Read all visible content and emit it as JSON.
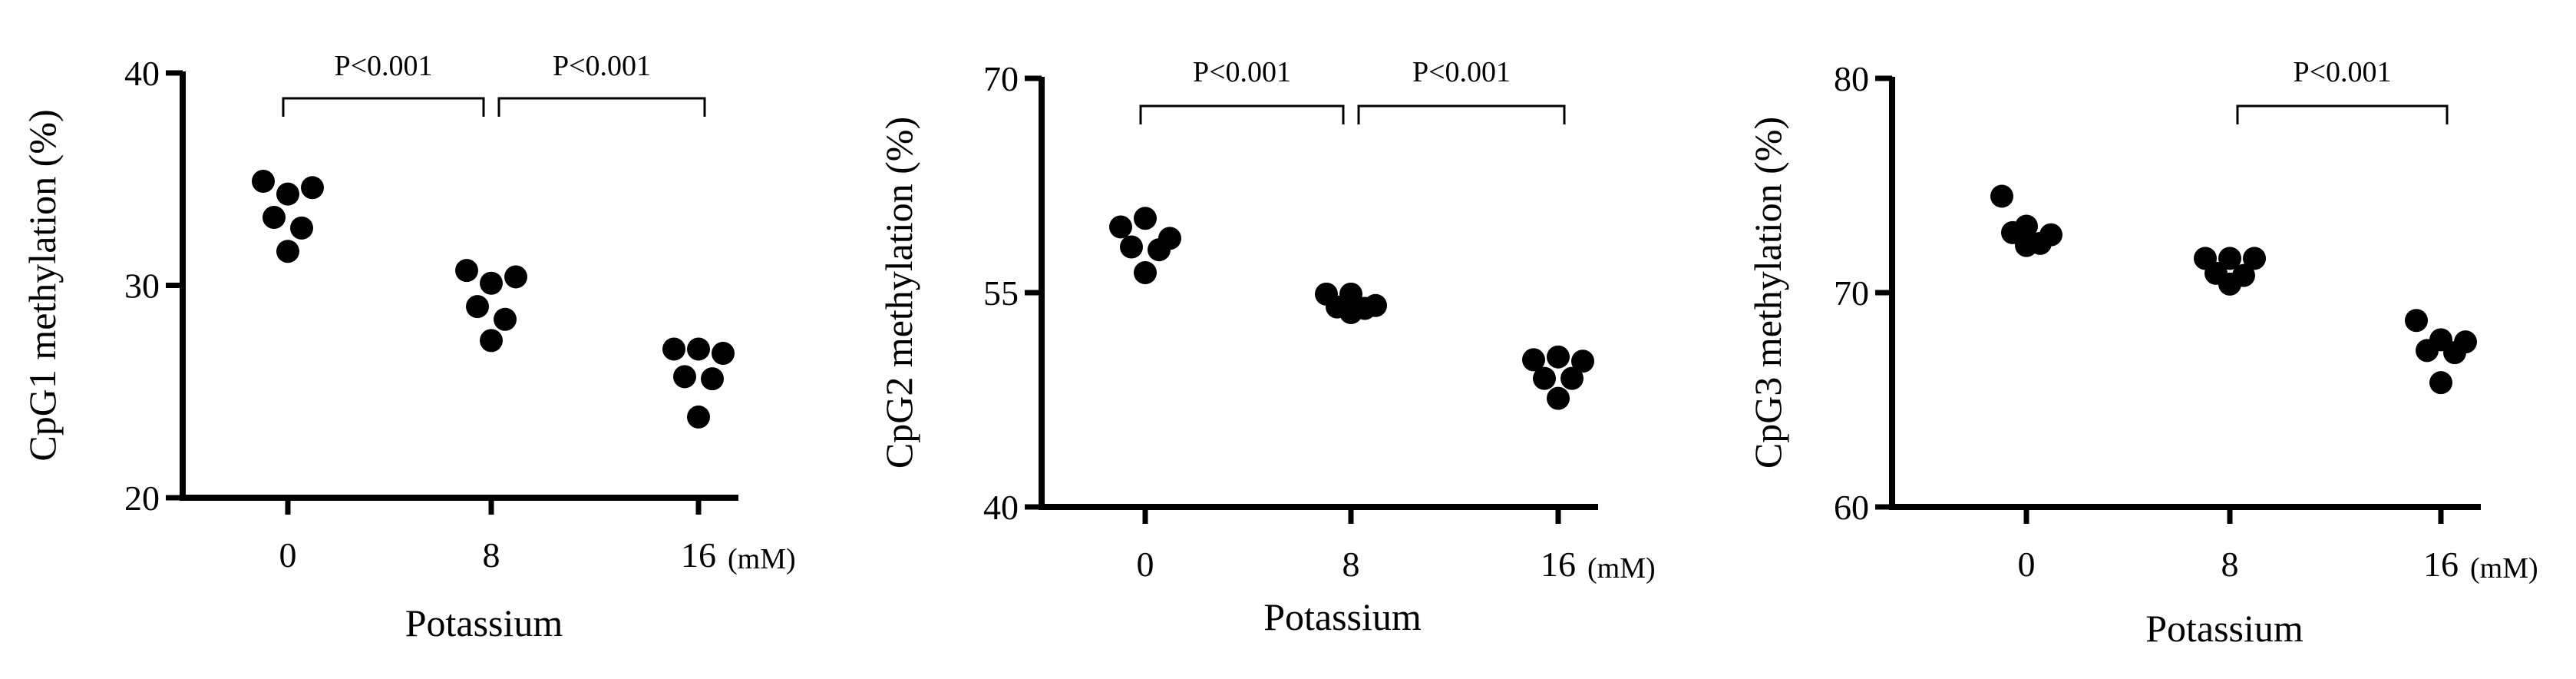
{
  "chart_data": [
    {
      "type": "scatter",
      "title": "",
      "xlabel": "Potassium",
      "ylabel": "CpG1 methylation (%)",
      "x_unit": "(mM)",
      "categories": [
        "0",
        "8",
        "16"
      ],
      "ylim": [
        20,
        40
      ],
      "yticks": [
        "20",
        "30",
        "40"
      ],
      "points": [
        {
          "x": "0",
          "values": [
            34.9,
            34.3,
            34.6,
            33.2,
            32.7,
            31.6
          ]
        },
        {
          "x": "8",
          "values": [
            30.7,
            30.1,
            30.4,
            29.0,
            28.4,
            27.4
          ]
        },
        {
          "x": "16",
          "values": [
            27.0,
            27.0,
            26.8,
            25.7,
            25.6,
            23.8
          ]
        }
      ],
      "annotations": [
        {
          "from": "0",
          "to": "8",
          "label": "P<0.001"
        },
        {
          "from": "8",
          "to": "16",
          "label": "P<0.001"
        }
      ]
    },
    {
      "type": "scatter",
      "title": "",
      "xlabel": "Potassium",
      "ylabel": "CpG2 methylation (%)",
      "x_unit": "(mM)",
      "categories": [
        "0",
        "8",
        "16"
      ],
      "ylim": [
        40,
        70
      ],
      "yticks": [
        "40",
        "55",
        "70"
      ],
      "points": [
        {
          "x": "0",
          "values": [
            59.6,
            60.2,
            58.8,
            58.2,
            58.0,
            56.4
          ]
        },
        {
          "x": "8",
          "values": [
            54.9,
            54.9,
            54.1,
            54.0,
            53.9,
            53.6
          ]
        },
        {
          "x": "16",
          "values": [
            50.3,
            50.5,
            50.2,
            49.0,
            49.0,
            47.6
          ]
        }
      ],
      "annotations": [
        {
          "from": "0",
          "to": "8",
          "label": "P<0.001"
        },
        {
          "from": "8",
          "to": "16",
          "label": "P<0.001"
        }
      ]
    },
    {
      "type": "scatter",
      "title": "",
      "xlabel": "Potassium",
      "ylabel": "CpG3 methylation (%)",
      "x_unit": "(mM)",
      "categories": [
        "0",
        "8",
        "16"
      ],
      "ylim": [
        60,
        80
      ],
      "yticks": [
        "60",
        "70",
        "80"
      ],
      "points": [
        {
          "x": "0",
          "values": [
            74.5,
            73.1,
            72.7,
            72.8,
            72.3,
            72.2
          ]
        },
        {
          "x": "8",
          "values": [
            71.6,
            71.6,
            71.6,
            70.9,
            70.8,
            70.4
          ]
        },
        {
          "x": "16",
          "values": [
            68.7,
            67.8,
            67.7,
            67.3,
            67.2,
            65.8
          ]
        }
      ],
      "annotations": [
        {
          "from": "8",
          "to": "16",
          "label": "P<0.001"
        }
      ]
    }
  ]
}
